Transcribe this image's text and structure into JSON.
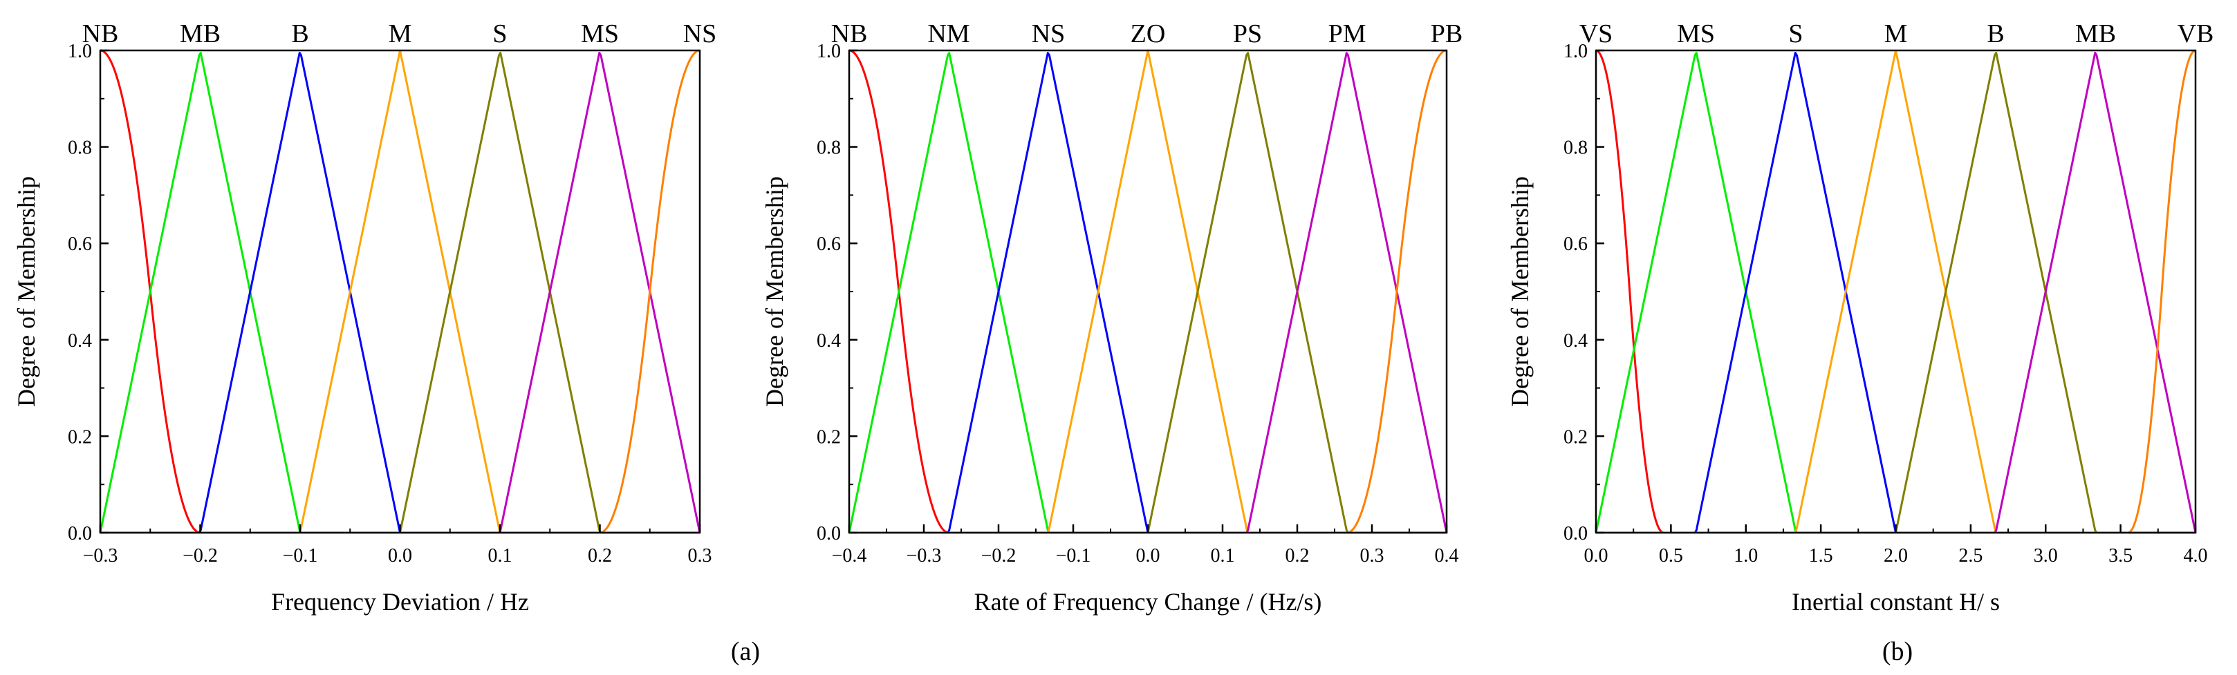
{
  "figure": {
    "captions": [
      "(a)",
      "(b)"
    ]
  },
  "colors": {
    "red": "#ff0000",
    "green": "#00ee00",
    "blue": "#0000ff",
    "yellow": "#ffa500",
    "olive": "#7f7f00",
    "magenta": "#c000c0",
    "orange": "#ff7f00"
  },
  "chart_data": [
    {
      "type": "line",
      "title": "",
      "xlabel": "Frequency Deviation / Hz",
      "ylabel": "Degree of Membership",
      "xlim": [
        -0.3,
        0.3
      ],
      "ylim": [
        0.0,
        1.0
      ],
      "xticks": [
        -0.3,
        -0.2,
        -0.1,
        0.0,
        0.1,
        0.2,
        0.3
      ],
      "xtick_labels": [
        "-0.3",
        "-0.2",
        "-0.1",
        "0.0",
        "0.1",
        "0.2",
        "0.3"
      ],
      "yticks": [
        0.0,
        0.2,
        0.4,
        0.6,
        0.8,
        1.0
      ],
      "ytick_labels": [
        "0.0",
        "0.2",
        "0.4",
        "0.6",
        "0.8",
        "1.0"
      ],
      "grid": false,
      "series": [
        {
          "name": "NB",
          "kind": "zmf",
          "params": [
            -0.3,
            -0.2
          ],
          "color": "#ff0000"
        },
        {
          "name": "MB",
          "kind": "trimf",
          "params": [
            -0.3,
            -0.2,
            -0.1
          ],
          "color": "#00ee00"
        },
        {
          "name": "B",
          "kind": "trimf",
          "params": [
            -0.2,
            -0.1,
            0.0
          ],
          "color": "#0000ff"
        },
        {
          "name": "M",
          "kind": "trimf",
          "params": [
            -0.1,
            0.0,
            0.1
          ],
          "color": "#ffa500"
        },
        {
          "name": "S",
          "kind": "trimf",
          "params": [
            0.0,
            0.1,
            0.2
          ],
          "color": "#7f7f00"
        },
        {
          "name": "MS",
          "kind": "trimf",
          "params": [
            0.1,
            0.2,
            0.3
          ],
          "color": "#c000c0"
        },
        {
          "name": "NS",
          "kind": "smf",
          "params": [
            0.2,
            0.3
          ],
          "color": "#ff7f00"
        }
      ]
    },
    {
      "type": "line",
      "title": "",
      "xlabel": "Rate of Frequency Change / (Hz/s)",
      "ylabel": "Degree of Membership",
      "xlim": [
        -0.4,
        0.4
      ],
      "ylim": [
        0.0,
        1.0
      ],
      "xticks": [
        -0.4,
        -0.3,
        -0.2,
        -0.1,
        0.0,
        0.1,
        0.2,
        0.3,
        0.4
      ],
      "xtick_labels": [
        "-0.4",
        "-0.3",
        "-0.2",
        "-0.1",
        "0.0",
        "0.1",
        "0.2",
        "0.3",
        "0.4"
      ],
      "yticks": [
        0.0,
        0.2,
        0.4,
        0.6,
        0.8,
        1.0
      ],
      "ytick_labels": [
        "0.0",
        "0.2",
        "0.4",
        "0.6",
        "0.8",
        "1.0"
      ],
      "grid": false,
      "series": [
        {
          "name": "NB",
          "kind": "zmf",
          "params": [
            -0.4,
            -0.2667
          ],
          "color": "#ff0000"
        },
        {
          "name": "NM",
          "kind": "trimf",
          "params": [
            -0.4,
            -0.2667,
            -0.1333
          ],
          "color": "#00ee00"
        },
        {
          "name": "NS",
          "kind": "trimf",
          "params": [
            -0.2667,
            -0.1333,
            0.0
          ],
          "color": "#0000ff"
        },
        {
          "name": "ZO",
          "kind": "trimf",
          "params": [
            -0.1333,
            0.0,
            0.1333
          ],
          "color": "#ffa500"
        },
        {
          "name": "PS",
          "kind": "trimf",
          "params": [
            0.0,
            0.1333,
            0.2667
          ],
          "color": "#7f7f00"
        },
        {
          "name": "PM",
          "kind": "trimf",
          "params": [
            0.1333,
            0.2667,
            0.4
          ],
          "color": "#c000c0"
        },
        {
          "name": "PB",
          "kind": "smf",
          "params": [
            0.2667,
            0.4
          ],
          "color": "#ff7f00"
        }
      ]
    },
    {
      "type": "line",
      "title": "",
      "xlabel": "Inertial constant H/ s",
      "ylabel": "Degree of Membership",
      "xlim": [
        0.0,
        4.0
      ],
      "ylim": [
        0.0,
        1.0
      ],
      "xticks": [
        0.0,
        0.5,
        1.0,
        1.5,
        2.0,
        2.5,
        3.0,
        3.5,
        4.0
      ],
      "xtick_labels": [
        "0.0",
        "0.5",
        "1.0",
        "1.5",
        "2.0",
        "2.5",
        "3.0",
        "3.5",
        "4.0"
      ],
      "yticks": [
        0.0,
        0.2,
        0.4,
        0.6,
        0.8,
        1.0
      ],
      "ytick_labels": [
        "0.0",
        "0.2",
        "0.4",
        "0.6",
        "0.8",
        "1.0"
      ],
      "grid": false,
      "series": [
        {
          "name": "VS",
          "kind": "zmf",
          "params": [
            0.0,
            0.45
          ],
          "color": "#ff0000"
        },
        {
          "name": "MS",
          "kind": "trimf",
          "params": [
            0.0,
            0.6667,
            1.3333
          ],
          "color": "#00ee00"
        },
        {
          "name": "S",
          "kind": "trimf",
          "params": [
            0.6667,
            1.3333,
            2.0
          ],
          "color": "#0000ff"
        },
        {
          "name": "M",
          "kind": "trimf",
          "params": [
            1.3333,
            2.0,
            2.6667
          ],
          "color": "#ffa500"
        },
        {
          "name": "B",
          "kind": "trimf",
          "params": [
            2.0,
            2.6667,
            3.3333
          ],
          "color": "#7f7f00"
        },
        {
          "name": "MB",
          "kind": "trimf",
          "params": [
            2.6667,
            3.3333,
            4.0
          ],
          "color": "#c000c0"
        },
        {
          "name": "VB",
          "kind": "smf",
          "params": [
            3.55,
            4.0
          ],
          "color": "#ff7f00"
        }
      ]
    }
  ]
}
